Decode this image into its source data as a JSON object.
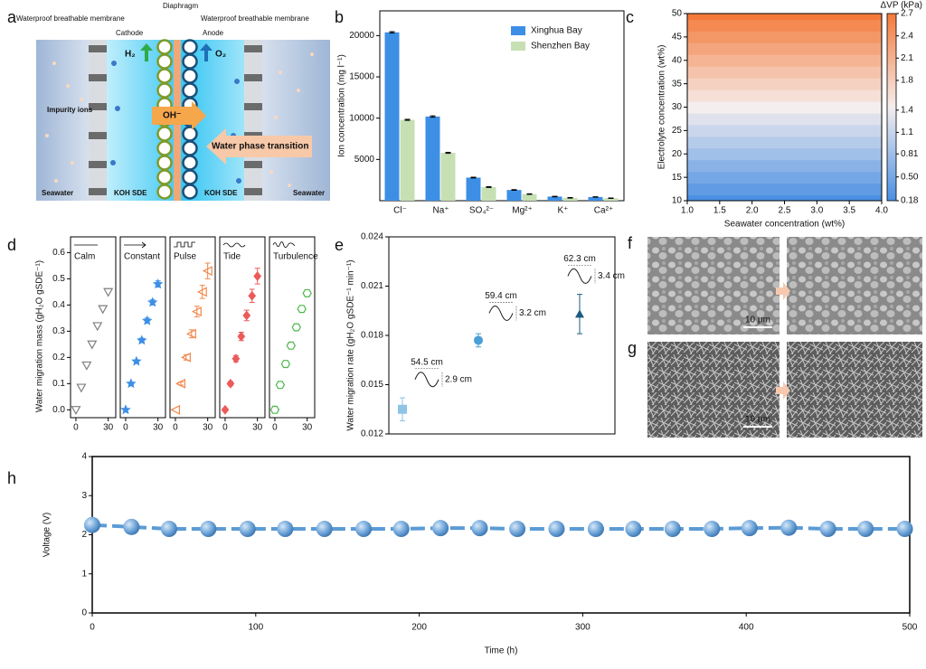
{
  "diagram": {
    "panel": "a",
    "membrane_left": "Waterproof breathable membrane",
    "membrane_right": "Waterproof breathable membrane",
    "diaphragm": "Diaphragm",
    "cathode": "Cathode",
    "anode": "Anode",
    "h2": "H₂",
    "o2": "O₂",
    "hydroxide": "OH⁻",
    "impurity": "Impurity ions",
    "transition": "Water phase transition",
    "seawater_left": "Seawater",
    "koh_left": "KOH SDE",
    "koh_right": "KOH SDE",
    "seawater_right": "Seawater"
  },
  "images": {
    "f": {
      "panel": "f",
      "scale_bar": "10 μm"
    },
    "g": {
      "panel": "g",
      "scale_bar": "10 μm"
    }
  },
  "chart_data": [
    {
      "type": "bar",
      "panel": "b",
      "y_label": "Ion concentration (mg l⁻¹)",
      "categories": [
        "Cl⁻",
        "Na⁺",
        "SO₄²⁻",
        "Mg²⁺",
        "K⁺",
        "Ca²⁺"
      ],
      "series": [
        {
          "name": "Xinghua Bay",
          "color": "#3d8fe6",
          "values": [
            20400,
            10200,
            2800,
            1300,
            500,
            450
          ],
          "errors": [
            80,
            80,
            50,
            40,
            30,
            30
          ]
        },
        {
          "name": "Shenzhen Bay",
          "color": "#c6e0b4",
          "values": [
            9800,
            5800,
            1650,
            800,
            350,
            300
          ],
          "errors": [
            60,
            60,
            50,
            40,
            30,
            30
          ]
        }
      ],
      "ylim": [
        0,
        23000
      ],
      "yticks": [
        5000,
        10000,
        15000,
        20000
      ],
      "legend": "upper right"
    },
    {
      "type": "heatmap",
      "panel": "c",
      "x_label": "Seawater concentration (wt%)",
      "y_label": "Electrolyte concentration (wt%)",
      "xlim": [
        1,
        4
      ],
      "xticks": [
        {
          "value": 1,
          "label": "1.0"
        },
        1.5,
        {
          "value": 2,
          "label": "2.0"
        },
        2.5,
        {
          "value": 3,
          "label": "3.0"
        },
        3.5,
        {
          "value": 4,
          "label": "4.0"
        }
      ],
      "ylim": [
        10,
        50
      ],
      "yticks": [
        10,
        15,
        20,
        25,
        30,
        35,
        40,
        45,
        50
      ],
      "y": [
        10,
        12.5,
        15,
        17.5,
        20,
        22.5,
        25,
        27.5,
        30,
        32.5,
        35,
        37.5,
        40,
        42.5,
        45,
        47.5,
        50
      ],
      "values": [
        0.18,
        0.34,
        0.495,
        0.65,
        0.81,
        0.97,
        1.125,
        1.28,
        1.44,
        1.6,
        1.755,
        1.91,
        2.07,
        2.23,
        2.385,
        2.54,
        2.7
      ],
      "colorbar_label": "ΔVP (kPa)",
      "zlim": [
        0.18,
        2.7
      ],
      "zticks": [
        0.18,
        {
          "value": 0.5,
          "label": "0.50"
        },
        0.81,
        1.1,
        1.4,
        1.8,
        2.1,
        2.4,
        2.7
      ],
      "colors": [
        "#4a8fe3",
        "#f5eeee",
        "#f47a3a"
      ]
    },
    {
      "type": "scatter",
      "panel": "d",
      "name": "Calm",
      "y_label": "Water migration mass (gH₂O gSDE⁻¹)",
      "color": "#7f7f7f",
      "marker": "triangle-down",
      "filled": false,
      "x": [
        0,
        5,
        10,
        15,
        20,
        25,
        30
      ],
      "values": [
        0,
        0.085,
        0.17,
        0.25,
        0.32,
        0.385,
        0.45
      ],
      "xlim": [
        -5,
        37
      ],
      "xticks": [
        0,
        30
      ],
      "ylim": [
        -0.03,
        0.66
      ],
      "yticks": [
        {
          "value": 0,
          "label": "0.0"
        },
        0.1,
        0.2,
        0.3,
        0.4,
        0.5,
        0.6
      ]
    },
    {
      "type": "scatter",
      "name": "Constant",
      "color": "#3d8fe6",
      "marker": "star",
      "filled": true,
      "x": [
        0,
        5,
        10,
        15,
        20,
        25,
        30
      ],
      "values": [
        0,
        0.1,
        0.185,
        0.265,
        0.34,
        0.41,
        0.48
      ],
      "errors": [
        0,
        0.005,
        0.006,
        0.008,
        0.01,
        0.01,
        0.012
      ],
      "xlim": [
        -5,
        37
      ],
      "xticks": [
        0,
        30
      ],
      "ylim": [
        -0.03,
        0.66
      ]
    },
    {
      "type": "scatter",
      "name": "Pulse",
      "color": "#f0874a",
      "marker": "triangle-left",
      "filled": false,
      "x": [
        0,
        5,
        10,
        15,
        20,
        25,
        30
      ],
      "values": [
        0,
        0.1,
        0.2,
        0.29,
        0.375,
        0.45,
        0.53
      ],
      "errors": [
        0,
        0.006,
        0.01,
        0.015,
        0.02,
        0.025,
        0.03
      ],
      "xlim": [
        -5,
        37
      ],
      "xticks": [
        0,
        30
      ],
      "ylim": [
        -0.03,
        0.66
      ]
    },
    {
      "type": "scatter",
      "name": "Tide",
      "color": "#ec5a5a",
      "marker": "diamond",
      "filled": true,
      "x": [
        0,
        5,
        10,
        15,
        20,
        25,
        30
      ],
      "values": [
        0,
        0.1,
        0.195,
        0.28,
        0.36,
        0.435,
        0.51
      ],
      "errors": [
        0,
        0.008,
        0.012,
        0.016,
        0.02,
        0.025,
        0.03
      ],
      "xlim": [
        -5,
        37
      ],
      "xticks": [
        0,
        30
      ],
      "ylim": [
        -0.03,
        0.66
      ]
    },
    {
      "type": "scatter",
      "name": "Turbulence",
      "color": "#4cb84a",
      "marker": "hexagon",
      "filled": false,
      "x": [
        0,
        5,
        10,
        15,
        20,
        25,
        30
      ],
      "values": [
        0,
        0.095,
        0.175,
        0.245,
        0.315,
        0.385,
        0.445
      ],
      "xlim": [
        -5,
        37
      ],
      "xticks": [
        0,
        30
      ],
      "ylim": [
        -0.03,
        0.66
      ]
    },
    {
      "type": "scatter",
      "panel": "e",
      "y_label": "Water migration rate (gH₂O gSDE⁻¹ min⁻¹)",
      "categories": [
        null,
        null,
        null
      ],
      "values": [
        0.0135,
        0.0177,
        0.0193
      ],
      "errors": [
        0.0007,
        0.0004,
        0.0012
      ],
      "colors": [
        "#8fc3e6",
        "#4a9fd6",
        "#1d5b82"
      ],
      "markers": [
        "square",
        "circle",
        "triangle-up"
      ],
      "annotations": [
        {
          "width": "54.5 cm",
          "height": "2.9 cm"
        },
        {
          "width": "59.4 cm",
          "height": "3.2 cm"
        },
        {
          "width": "62.3 cm",
          "height": "3.4 cm"
        }
      ],
      "ylim": [
        0.012,
        0.024
      ],
      "yticks": [
        0.012,
        0.015,
        0.018,
        0.021,
        0.024
      ]
    },
    {
      "type": "line",
      "panel": "h",
      "x_label": "Time (h)",
      "y_label": "Voltage (V)",
      "color": "#5b9bd5",
      "marker": "sphere",
      "dashed": true,
      "x": [
        0,
        24,
        47,
        71,
        95,
        118,
        142,
        166,
        189,
        213,
        237,
        260,
        284,
        308,
        331,
        355,
        379,
        402,
        426,
        450,
        473,
        497
      ],
      "values": [
        2.25,
        2.2,
        2.15,
        2.15,
        2.15,
        2.15,
        2.15,
        2.15,
        2.15,
        2.17,
        2.17,
        2.15,
        2.15,
        2.15,
        2.15,
        2.15,
        2.15,
        2.17,
        2.18,
        2.15,
        2.15,
        2.15
      ],
      "xlim": [
        0,
        500
      ],
      "xticks": [
        0,
        100,
        200,
        300,
        400,
        500
      ],
      "ylim": [
        0,
        4
      ],
      "yticks": [
        0,
        1,
        2,
        3,
        4
      ]
    }
  ]
}
